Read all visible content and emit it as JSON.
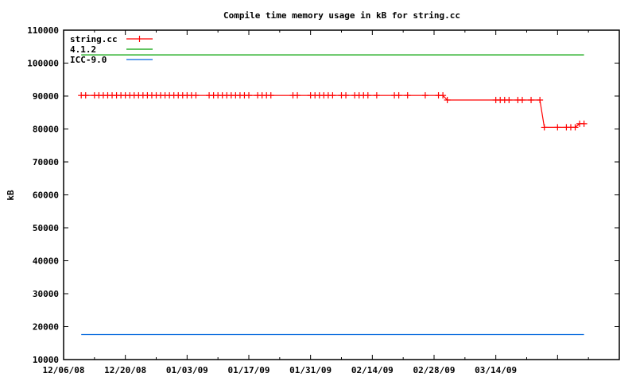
{
  "chart_data": {
    "type": "line",
    "title": "Compile time memory usage in kB for string.cc",
    "xlabel": "",
    "ylabel": "kB",
    "ylim": [
      10000,
      110000
    ],
    "yticks": [
      "10000",
      "20000",
      "30000",
      "40000",
      "50000",
      "60000",
      "70000",
      "80000",
      "90000",
      "100000",
      "110000"
    ],
    "xlim": [
      "2008-12-06",
      "2009-04-11"
    ],
    "xtick_labels": [
      {
        "date": "2008-12-06",
        "label": "12/06/08"
      },
      {
        "date": "2008-12-20",
        "label": "12/20/08"
      },
      {
        "date": "2009-01-03",
        "label": "01/03/09"
      },
      {
        "date": "2009-01-17",
        "label": "01/17/09"
      },
      {
        "date": "2009-01-31",
        "label": "01/31/09"
      },
      {
        "date": "2009-02-14",
        "label": "02/14/09"
      },
      {
        "date": "2009-02-28",
        "label": "02/28/09"
      },
      {
        "date": "2009-03-14",
        "label": "03/14/09"
      }
    ],
    "grid": false,
    "legend_position": "top-left",
    "series": [
      {
        "name": "string.cc",
        "color": "#ff0000",
        "marker": "plus",
        "points": [
          [
            "2008-12-10",
            90200
          ],
          [
            "2008-12-11",
            90200
          ],
          [
            "2008-12-13",
            90200
          ],
          [
            "2008-12-14",
            90200
          ],
          [
            "2008-12-15",
            90200
          ],
          [
            "2008-12-16",
            90200
          ],
          [
            "2008-12-17",
            90200
          ],
          [
            "2008-12-18",
            90200
          ],
          [
            "2008-12-19",
            90200
          ],
          [
            "2008-12-20",
            90200
          ],
          [
            "2008-12-21",
            90200
          ],
          [
            "2008-12-22",
            90200
          ],
          [
            "2008-12-23",
            90200
          ],
          [
            "2008-12-24",
            90200
          ],
          [
            "2008-12-25",
            90200
          ],
          [
            "2008-12-26",
            90200
          ],
          [
            "2008-12-27",
            90200
          ],
          [
            "2008-12-28",
            90200
          ],
          [
            "2008-12-29",
            90200
          ],
          [
            "2008-12-30",
            90200
          ],
          [
            "2008-12-31",
            90200
          ],
          [
            "2009-01-01",
            90200
          ],
          [
            "2009-01-02",
            90200
          ],
          [
            "2009-01-03",
            90200
          ],
          [
            "2009-01-04",
            90200
          ],
          [
            "2009-01-05",
            90200
          ],
          [
            "2009-01-08",
            90200
          ],
          [
            "2009-01-09",
            90200
          ],
          [
            "2009-01-10",
            90200
          ],
          [
            "2009-01-11",
            90200
          ],
          [
            "2009-01-12",
            90200
          ],
          [
            "2009-01-13",
            90200
          ],
          [
            "2009-01-14",
            90200
          ],
          [
            "2009-01-15",
            90200
          ],
          [
            "2009-01-16",
            90200
          ],
          [
            "2009-01-17",
            90200
          ],
          [
            "2009-01-19",
            90200
          ],
          [
            "2009-01-20",
            90200
          ],
          [
            "2009-01-21",
            90200
          ],
          [
            "2009-01-22",
            90200
          ],
          [
            "2009-01-27",
            90200
          ],
          [
            "2009-01-28",
            90200
          ],
          [
            "2009-01-31",
            90200
          ],
          [
            "2009-02-01",
            90200
          ],
          [
            "2009-02-02",
            90200
          ],
          [
            "2009-02-03",
            90200
          ],
          [
            "2009-02-04",
            90200
          ],
          [
            "2009-02-05",
            90200
          ],
          [
            "2009-02-07",
            90200
          ],
          [
            "2009-02-08",
            90200
          ],
          [
            "2009-02-10",
            90200
          ],
          [
            "2009-02-11",
            90200
          ],
          [
            "2009-02-12",
            90200
          ],
          [
            "2009-02-13",
            90200
          ],
          [
            "2009-02-15",
            90200
          ],
          [
            "2009-02-19",
            90200
          ],
          [
            "2009-02-20",
            90200
          ],
          [
            "2009-02-22",
            90200
          ],
          [
            "2009-02-26",
            90200
          ],
          [
            "2009-03-01",
            90200
          ],
          [
            "2009-03-02",
            90200
          ],
          [
            "2009-03-03",
            88800
          ],
          [
            "2009-03-14",
            88800
          ],
          [
            "2009-03-15",
            88800
          ],
          [
            "2009-03-16",
            88800
          ],
          [
            "2009-03-17",
            88800
          ],
          [
            "2009-03-19",
            88800
          ],
          [
            "2009-03-20",
            88800
          ],
          [
            "2009-03-22",
            88800
          ],
          [
            "2009-03-24",
            88800
          ],
          [
            "2009-03-25",
            80500
          ],
          [
            "2009-03-28",
            80500
          ],
          [
            "2009-03-30",
            80500
          ],
          [
            "2009-03-31",
            80500
          ],
          [
            "2009-04-01",
            80500
          ],
          [
            "2009-04-02",
            81600
          ],
          [
            "2009-04-03",
            81600
          ]
        ]
      },
      {
        "name": "4.1.2",
        "color": "#00a000",
        "marker": "none",
        "points": [
          [
            "2008-12-10",
            102500
          ],
          [
            "2009-04-03",
            102500
          ]
        ]
      },
      {
        "name": "ICC-9.0",
        "color": "#0066dd",
        "marker": "none",
        "points": [
          [
            "2008-12-10",
            17600
          ],
          [
            "2009-04-03",
            17600
          ]
        ]
      }
    ]
  }
}
